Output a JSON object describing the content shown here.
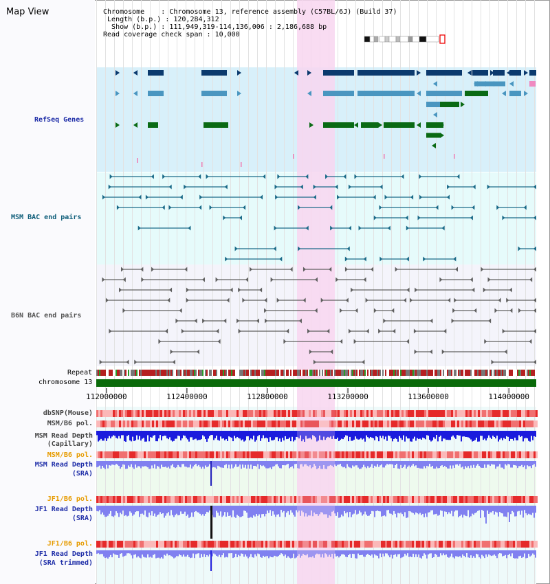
{
  "page": {
    "title": "Map View"
  },
  "info": {
    "chromosome_key": "Chromosome",
    "chromosome_val": "Chromosome 13, reference assembly (C57BL/6J) (Build 37)",
    "length_key": "Length (b.p.)",
    "length_val": "120,284,312",
    "show_key": "Show (b.p.)",
    "show_val": "111,949,319-114,136,006 : 2,186,688 bp",
    "span_key": "Read coverage check span",
    "span_val": "10,000"
  },
  "tracks": {
    "refseq": "RefSeq Genes",
    "msm_bac": "MSM BAC end pairs",
    "b6n_bac": "B6N BAC end pairs",
    "repeat": "Repeat",
    "chromosome": "chromosome 13",
    "dbsnp": "dbSNP(Mouse)",
    "msm_b6_pol_1": "MSM/B6 pol.",
    "msm_depth_cap_1": "MSM Read Depth",
    "msm_depth_cap_2": "(Capillary)",
    "msm_b6_pol_2": "MSM/B6 pol.",
    "msm_depth_sra_1": "MSM Read Depth",
    "msm_depth_sra_2": "(SRA)",
    "jf1_b6_pol_1": "JF1/B6 pol.",
    "jf1_depth_sra_1": "JF1 Read Depth",
    "jf1_depth_sra_2": "(SRA)",
    "jf1_b6_pol_2": "JF1/B6 pol.",
    "jf1_depth_trim_1": "JF1 Read Depth",
    "jf1_depth_trim_2": "(SRA trimmed)"
  },
  "axis": {
    "ticks": [
      "112000000",
      "112400000",
      "112800000",
      "113200000",
      "113600000",
      "114000000"
    ],
    "tick_values": [
      112000000,
      112400000,
      112800000,
      113200000,
      113600000,
      114000000
    ],
    "view_start": 111949319,
    "view_end": 114136006
  },
  "colors": {
    "refseq_bg": "#d8f0fa",
    "bac_bg": "#e6fbfb",
    "b6n_bg": "#f4f4fb",
    "highlight": "#f8d6f0",
    "gene_dark": "#0b3a6e",
    "gene_mid": "#4a96c0",
    "gene_green": "#0a6a14",
    "bac_teal": "#1a6a88",
    "bac_gray": "#606060",
    "chrom_green": "#0a6a0a",
    "depth_blue": "#1b1bdd",
    "depth_light": "#8080f0",
    "pol_red": "#e23a3a"
  }
}
